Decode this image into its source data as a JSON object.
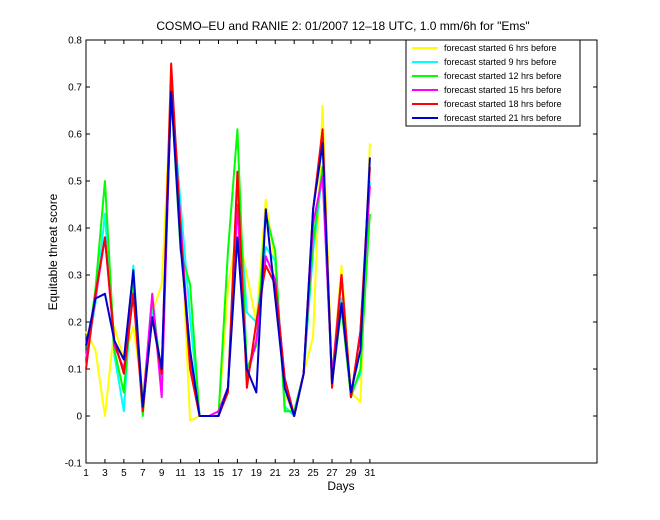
{
  "chart_data": {
    "type": "line",
    "title": "COSMO–EU and RANIE 2: 01/2007 12–18 UTC, 1.0 mm/6h for \"Ems\"",
    "xlabel": "Days",
    "ylabel": "Equitable threat score",
    "xlim": [
      1,
      55
    ],
    "ylim": [
      -0.1,
      0.8
    ],
    "xticks": [
      1,
      3,
      5,
      7,
      9,
      11,
      13,
      15,
      17,
      19,
      21,
      23,
      25,
      27,
      29,
      31
    ],
    "yticks": [
      -0.1,
      0,
      0.1,
      0.2,
      0.3,
      0.4,
      0.5,
      0.6,
      0.7,
      0.8
    ],
    "legend_position": "top-right",
    "grid": false,
    "x": [
      1,
      2,
      3,
      4,
      5,
      6,
      7,
      8,
      9,
      10,
      11,
      12,
      13,
      14,
      15,
      16,
      17,
      18,
      19,
      20,
      21,
      22,
      23,
      24,
      25,
      26,
      27,
      28,
      29,
      30,
      31
    ],
    "series": [
      {
        "name": "forecast started 6 hrs before",
        "color": "#ffff00",
        "values": [
          0.18,
          0.14,
          0.0,
          0.19,
          0.12,
          0.19,
          0.05,
          0.22,
          0.28,
          0.68,
          0.42,
          -0.01,
          0.0,
          0.0,
          0.0,
          0.27,
          0.4,
          0.3,
          0.2,
          0.46,
          0.32,
          0.05,
          0.0,
          0.09,
          0.17,
          0.66,
          0.08,
          0.32,
          0.05,
          0.03,
          0.58
        ]
      },
      {
        "name": "forecast started 9 hrs before",
        "color": "#00ffff",
        "values": [
          0.12,
          0.24,
          0.43,
          0.13,
          0.01,
          0.32,
          0.01,
          0.22,
          0.08,
          0.7,
          0.45,
          0.21,
          0.0,
          0.0,
          0.0,
          0.06,
          0.5,
          0.22,
          0.2,
          0.36,
          0.33,
          0.02,
          0.0,
          0.09,
          0.35,
          0.52,
          0.08,
          0.25,
          0.05,
          0.09,
          0.5
        ]
      },
      {
        "name": "forecast started 12 hrs before",
        "color": "#00ff00",
        "values": [
          0.12,
          0.27,
          0.5,
          0.14,
          0.05,
          0.29,
          0.0,
          0.25,
          0.08,
          0.69,
          0.35,
          0.28,
          0.0,
          0.0,
          0.0,
          0.35,
          0.61,
          0.1,
          0.15,
          0.43,
          0.35,
          0.01,
          0.01,
          0.09,
          0.37,
          0.53,
          0.07,
          0.23,
          0.04,
          0.1,
          0.43
        ]
      },
      {
        "name": "forecast started 15 hrs before",
        "color": "#ff00ff",
        "values": [
          0.12,
          0.25,
          0.38,
          0.15,
          0.1,
          0.26,
          0.02,
          0.26,
          0.04,
          0.7,
          0.41,
          0.12,
          0.0,
          0.0,
          0.01,
          0.06,
          0.45,
          0.08,
          0.16,
          0.34,
          0.29,
          0.08,
          0.0,
          0.09,
          0.41,
          0.51,
          0.08,
          0.3,
          0.04,
          0.18,
          0.49
        ]
      },
      {
        "name": "forecast started 18 hrs before",
        "color": "#ff0000",
        "values": [
          0.1,
          0.26,
          0.38,
          0.16,
          0.09,
          0.26,
          0.01,
          0.21,
          0.09,
          0.75,
          0.39,
          0.1,
          0.0,
          0.0,
          0.0,
          0.05,
          0.52,
          0.06,
          0.2,
          0.32,
          0.28,
          0.08,
          0.0,
          0.09,
          0.44,
          0.61,
          0.06,
          0.3,
          0.04,
          0.18,
          0.53
        ]
      },
      {
        "name": "forecast started 21 hrs before",
        "color": "#0000cc",
        "values": [
          0.15,
          0.25,
          0.26,
          0.16,
          0.12,
          0.31,
          0.02,
          0.21,
          0.1,
          0.69,
          0.36,
          0.14,
          0.0,
          0.0,
          0.0,
          0.06,
          0.38,
          0.1,
          0.05,
          0.44,
          0.25,
          0.06,
          0.0,
          0.09,
          0.44,
          0.58,
          0.07,
          0.24,
          0.05,
          0.14,
          0.55
        ]
      }
    ]
  }
}
